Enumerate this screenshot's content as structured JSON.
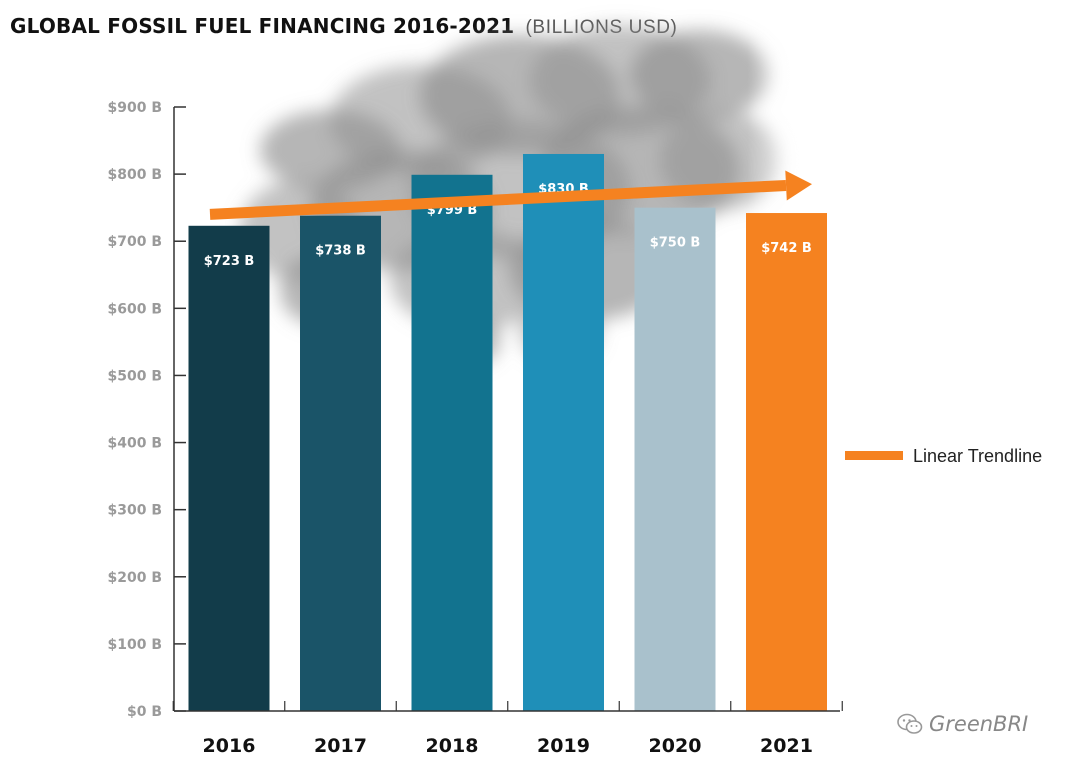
{
  "title": "GLOBAL FOSSIL FUEL FINANCING 2016-2021",
  "subtitle": "(BILLIONS USD)",
  "watermark": "GreenBRI",
  "legend": {
    "label": "Linear Trendline"
  },
  "colors": {
    "trendline": "#f58220",
    "axis": "#333333",
    "tick_text": "#9a9a9a",
    "smoke": "#8f8f8f"
  },
  "chart_data": {
    "type": "bar",
    "categories": [
      "2016",
      "2017",
      "2018",
      "2019",
      "2020",
      "2021"
    ],
    "values": [
      723,
      738,
      799,
      830,
      750,
      742
    ],
    "data_labels": [
      "$723 B",
      "$738 B",
      "$799 B",
      "$830 B",
      "$750 B",
      "$742 B"
    ],
    "bar_colors": [
      "#123c4a",
      "#1a5468",
      "#12738f",
      "#1f8fb8",
      "#a9c1cc",
      "#f58220"
    ],
    "ylim": [
      0,
      900
    ],
    "yticks": [
      0,
      100,
      200,
      300,
      400,
      500,
      600,
      700,
      800,
      900
    ],
    "ytick_labels": [
      "$0 B",
      "$100 B",
      "$200 B",
      "$300 B",
      "$400 B",
      "$500 B",
      "$600 B",
      "$700 B",
      "$800 B",
      "$900 B"
    ],
    "trendline": {
      "start": 740,
      "end": 785
    },
    "xlabel": "",
    "ylabel": "",
    "grid": false,
    "legend_position": "right"
  }
}
